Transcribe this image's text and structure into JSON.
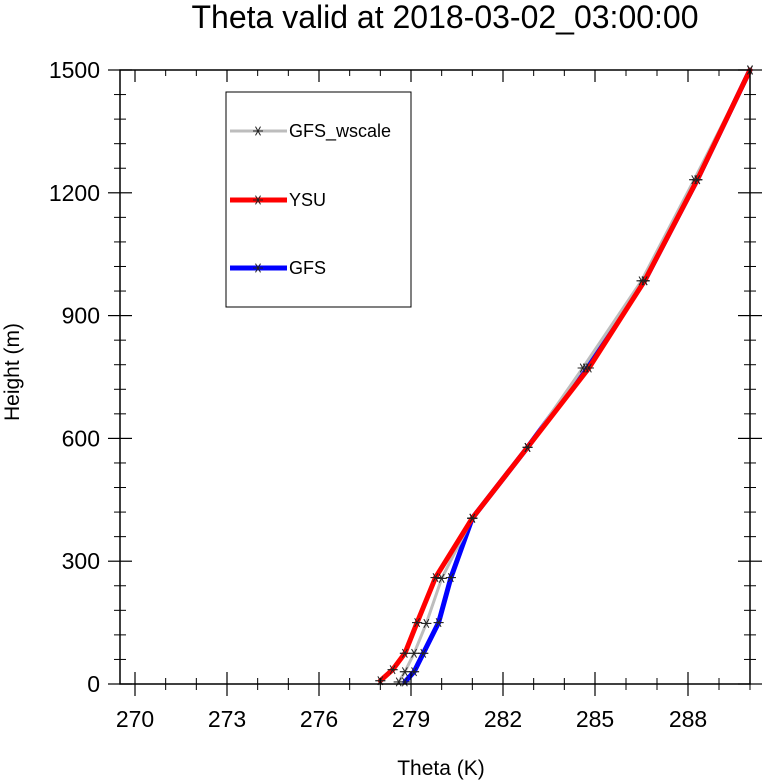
{
  "chart_data": {
    "type": "line",
    "title": "Theta valid at 2018-03-02_03:00:00",
    "xlabel": "Theta (K)",
    "ylabel": "Height (m)",
    "xlim": [
      270,
      290
    ],
    "ylim": [
      0,
      1500
    ],
    "x_ticks": [
      270,
      273,
      276,
      279,
      282,
      285,
      288
    ],
    "x_tick_labels": [
      "270",
      "273",
      "276",
      "279",
      "282",
      "285",
      "288"
    ],
    "y_ticks": [
      0,
      300,
      600,
      900,
      1200,
      1500
    ],
    "y_tick_labels": [
      "0",
      "300",
      "600",
      "900",
      "1200",
      "1500"
    ],
    "grid": false,
    "legend_position": "top-left (boxed)",
    "series": [
      {
        "name": "GFS_wscale",
        "color": "#bdbdbd",
        "marker": "asterisk",
        "points": [
          [
            278.6,
            5
          ],
          [
            278.8,
            30
          ],
          [
            279.1,
            75
          ],
          [
            279.5,
            148
          ],
          [
            280.0,
            258
          ],
          [
            281.0,
            405
          ],
          [
            282.8,
            578
          ],
          [
            284.6,
            772
          ],
          [
            286.5,
            985
          ],
          [
            288.2,
            1232
          ],
          [
            290.0,
            1500
          ]
        ]
      },
      {
        "name": "YSU",
        "color": "#ff0000",
        "marker": "asterisk",
        "points": [
          [
            278.0,
            8
          ],
          [
            278.4,
            35
          ],
          [
            278.8,
            75
          ],
          [
            279.2,
            150
          ],
          [
            279.8,
            260
          ],
          [
            281.0,
            405
          ],
          [
            282.8,
            578
          ],
          [
            284.8,
            772
          ],
          [
            286.6,
            985
          ],
          [
            288.3,
            1232
          ],
          [
            290.0,
            1500
          ]
        ]
      },
      {
        "name": "GFS",
        "color": "#0000ff",
        "marker": "asterisk",
        "points": [
          [
            278.8,
            5
          ],
          [
            279.1,
            30
          ],
          [
            279.4,
            75
          ],
          [
            279.9,
            150
          ],
          [
            280.3,
            260
          ],
          [
            281.0,
            405
          ],
          [
            282.8,
            578
          ],
          [
            284.7,
            772
          ],
          [
            286.6,
            985
          ],
          [
            288.3,
            1232
          ],
          [
            290.0,
            1500
          ]
        ]
      }
    ]
  }
}
